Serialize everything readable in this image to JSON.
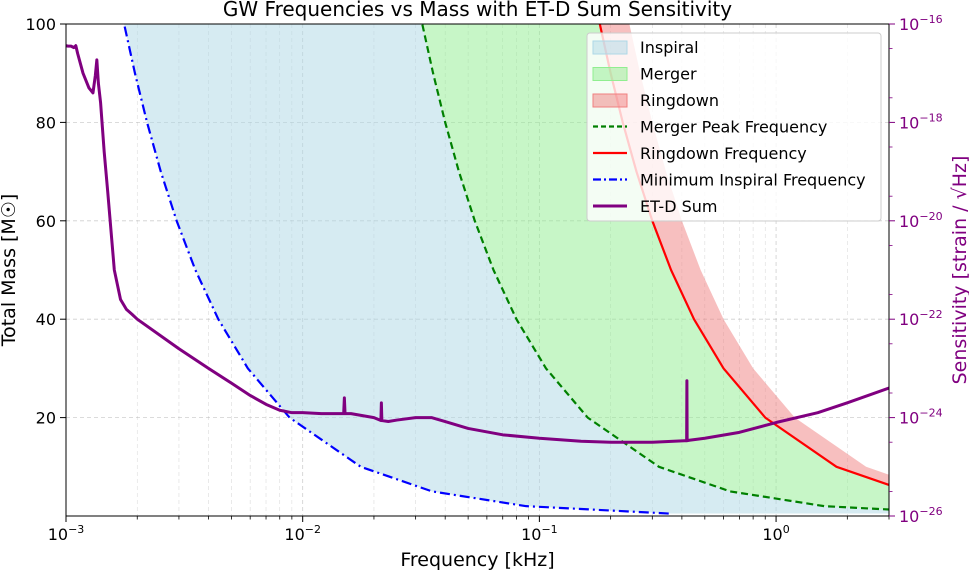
{
  "chart_data": {
    "type": "line",
    "title": "GW Frequencies vs Mass with ET-D Sum Sensitivity",
    "xlabel": "Frequency [kHz]",
    "ylabel": "Total Mass [M☉]",
    "y2label": "Sensitivity [strain / √Hz]",
    "xscale": "log",
    "xlim": [
      0.001,
      3
    ],
    "ylim": [
      0,
      100
    ],
    "y2scale": "log",
    "y2lim": [
      1e-26,
      1e-16
    ],
    "grid": true,
    "legend_position": "top-right",
    "x_ticks": [
      {
        "value": 0.001,
        "base": "10",
        "exp": "−3"
      },
      {
        "value": 0.01,
        "base": "10",
        "exp": "−2"
      },
      {
        "value": 0.1,
        "base": "10",
        "exp": "−1"
      },
      {
        "value": 1,
        "base": "10",
        "exp": "0"
      }
    ],
    "y_ticks": [
      {
        "value": 20,
        "label": "20"
      },
      {
        "value": 40,
        "label": "40"
      },
      {
        "value": 60,
        "label": "60"
      },
      {
        "value": 80,
        "label": "80"
      },
      {
        "value": 100,
        "label": "100"
      }
    ],
    "y2_ticks": [
      {
        "value": -26,
        "base": "10",
        "exp": "−26"
      },
      {
        "value": -24,
        "base": "10",
        "exp": "−24"
      },
      {
        "value": -22,
        "base": "10",
        "exp": "−22"
      },
      {
        "value": -20,
        "base": "10",
        "exp": "−20"
      },
      {
        "value": -18,
        "base": "10",
        "exp": "−18"
      },
      {
        "value": -16,
        "base": "10",
        "exp": "−16"
      }
    ],
    "mass_grid": [
      0.5,
      2,
      5,
      10,
      20,
      30,
      40,
      50,
      60,
      70,
      80,
      90,
      100
    ],
    "inspiral_coef_khz_msun": 0.176,
    "merger_coef_khz_msun": 3.2,
    "ringdown_coef_khz_msun": 18,
    "ringdown_band_upper_coef_khz_msun": 24,
    "regions": [
      {
        "name": "Inspiral",
        "from": "Minimum Inspiral Frequency",
        "to": "Merger Peak Frequency",
        "color": "#add8e6",
        "opacity": 0.5
      },
      {
        "name": "Merger",
        "from": "Merger Peak Frequency",
        "to": "Ringdown Frequency",
        "color": "#90ee90",
        "opacity": 0.5
      },
      {
        "name": "Ringdown",
        "from": "Ringdown Frequency",
        "to": "Ringdown Upper",
        "color": "#f08080",
        "opacity": 0.5
      }
    ],
    "series": [
      {
        "name": "Merger Peak Frequency",
        "color": "#008000",
        "style": "dashed",
        "axis": "left",
        "coef": "merger_coef_khz_msun"
      },
      {
        "name": "Ringdown Frequency",
        "color": "#ff0000",
        "style": "solid",
        "axis": "left",
        "coef": "ringdown_coef_khz_msun"
      },
      {
        "name": "Minimum Inspiral Frequency",
        "color": "#0000ff",
        "style": "dashdot",
        "axis": "left",
        "coef": "inspiral_coef_khz_msun"
      },
      {
        "name": "ET-D Sum",
        "color": "#800080",
        "style": "solid",
        "axis": "right",
        "x": [
          0.001,
          0.00102,
          0.00105,
          0.00108,
          0.0011,
          0.00112,
          0.00118,
          0.00125,
          0.0013,
          0.00133,
          0.00135,
          0.00137,
          0.0014,
          0.00145,
          0.0015,
          0.0016,
          0.0017,
          0.0018,
          0.0019,
          0.002,
          0.003,
          0.004,
          0.005,
          0.006,
          0.007,
          0.008,
          0.009,
          0.01,
          0.012,
          0.0149,
          0.015,
          0.0151,
          0.016,
          0.02,
          0.0214,
          0.0215,
          0.0216,
          0.023,
          0.025,
          0.03,
          0.035,
          0.04,
          0.05,
          0.07,
          0.1,
          0.15,
          0.2,
          0.3,
          0.41,
          0.419,
          0.42,
          0.421,
          0.43,
          0.5,
          0.7,
          1,
          1.5,
          2,
          3
        ],
        "y": [
          -16.44,
          -16.45,
          -16.45,
          -16.48,
          -16.44,
          -16.6,
          -17.0,
          -17.3,
          -17.4,
          -17.05,
          -16.73,
          -17.2,
          -17.6,
          -18.6,
          -19.4,
          -21.0,
          -21.6,
          -21.8,
          -21.9,
          -22.0,
          -22.6,
          -23.0,
          -23.3,
          -23.55,
          -23.73,
          -23.85,
          -23.9,
          -23.9,
          -23.92,
          -23.92,
          -23.6,
          -23.92,
          -23.92,
          -24.0,
          -24.06,
          -23.7,
          -24.06,
          -24.08,
          -24.05,
          -24.0,
          -24.0,
          -24.08,
          -24.22,
          -24.35,
          -24.42,
          -24.48,
          -24.5,
          -24.5,
          -24.47,
          -24.47,
          -23.25,
          -24.47,
          -24.46,
          -24.42,
          -24.3,
          -24.1,
          -23.9,
          -23.7,
          -23.4
        ]
      }
    ]
  }
}
